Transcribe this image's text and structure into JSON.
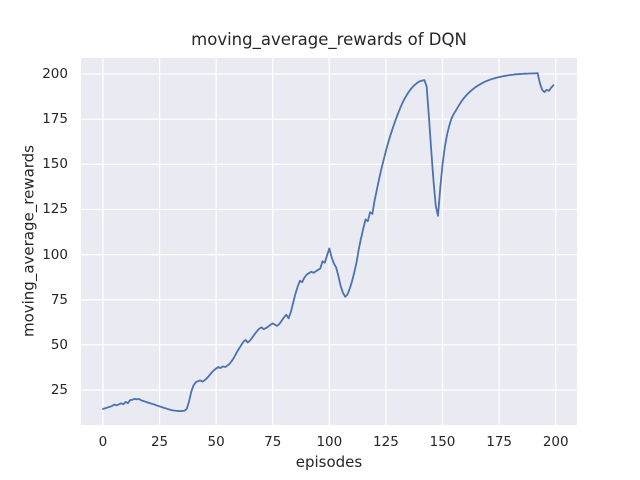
{
  "figure": {
    "title": "moving_average_rewards of DQN",
    "xlabel": "episodes",
    "ylabel": "moving_average_rewards"
  },
  "colors": {
    "line": "#4c72b0",
    "axes_background": "#eaeaf2",
    "grid": "#ffffff",
    "text": "#262626",
    "figure_background": "#ffffff"
  },
  "chart_data": {
    "type": "line",
    "title": "moving_average_rewards of DQN",
    "xlabel": "episodes",
    "ylabel": "moving_average_rewards",
    "x_ticks": [
      0,
      25,
      50,
      75,
      100,
      125,
      150,
      175,
      200
    ],
    "y_ticks": [
      25,
      50,
      75,
      100,
      125,
      150,
      175,
      200
    ],
    "xlim": [
      -9.7,
      209.4
    ],
    "ylim": [
      5.6,
      208.9
    ],
    "grid": true,
    "legend": false,
    "series": [
      {
        "name": "DQN",
        "color": "#4c72b0",
        "points": [
          [
            0,
            14.5
          ],
          [
            1,
            14.9
          ],
          [
            2,
            15.3
          ],
          [
            3,
            15.7
          ],
          [
            4,
            16.1
          ],
          [
            5,
            16.9
          ],
          [
            6,
            16.5
          ],
          [
            7,
            17.0
          ],
          [
            8,
            17.6
          ],
          [
            9,
            17.1
          ],
          [
            10,
            18.4
          ],
          [
            11,
            17.7
          ],
          [
            12,
            19.4
          ],
          [
            13,
            19.6
          ],
          [
            14,
            20.1
          ],
          [
            15,
            19.8
          ],
          [
            16,
            20.0
          ],
          [
            17,
            19.2
          ],
          [
            18,
            18.8
          ],
          [
            19,
            18.4
          ],
          [
            20,
            18.0
          ],
          [
            21,
            17.6
          ],
          [
            22,
            17.2
          ],
          [
            23,
            16.8
          ],
          [
            24,
            16.3
          ],
          [
            25,
            15.9
          ],
          [
            26,
            15.5
          ],
          [
            27,
            15.1
          ],
          [
            28,
            14.7
          ],
          [
            29,
            14.3
          ],
          [
            30,
            13.9
          ],
          [
            31,
            13.7
          ],
          [
            32,
            13.5
          ],
          [
            33,
            13.4
          ],
          [
            34,
            13.3
          ],
          [
            35,
            13.4
          ],
          [
            36,
            13.5
          ],
          [
            37,
            14.5
          ],
          [
            38,
            18.5
          ],
          [
            39,
            24.0
          ],
          [
            40,
            27.5
          ],
          [
            41,
            29.3
          ],
          [
            42,
            29.9
          ],
          [
            43,
            30.3
          ],
          [
            44,
            29.6
          ],
          [
            45,
            30.5
          ],
          [
            46,
            31.6
          ],
          [
            47,
            33.1
          ],
          [
            48,
            34.6
          ],
          [
            49,
            35.9
          ],
          [
            50,
            36.9
          ],
          [
            51,
            37.7
          ],
          [
            52,
            37.2
          ],
          [
            53,
            38.1
          ],
          [
            54,
            37.7
          ],
          [
            55,
            38.5
          ],
          [
            56,
            39.6
          ],
          [
            57,
            41.2
          ],
          [
            58,
            43.2
          ],
          [
            59,
            45.6
          ],
          [
            60,
            47.7
          ],
          [
            61,
            49.7
          ],
          [
            62,
            51.6
          ],
          [
            63,
            52.7
          ],
          [
            64,
            51.3
          ],
          [
            65,
            52.5
          ],
          [
            66,
            54.1
          ],
          [
            67,
            55.9
          ],
          [
            68,
            57.5
          ],
          [
            69,
            58.9
          ],
          [
            70,
            59.7
          ],
          [
            71,
            58.7
          ],
          [
            72,
            59.3
          ],
          [
            73,
            60.1
          ],
          [
            74,
            61.1
          ],
          [
            75,
            61.9
          ],
          [
            76,
            61.1
          ],
          [
            77,
            60.5
          ],
          [
            78,
            61.7
          ],
          [
            79,
            63.5
          ],
          [
            80,
            65.3
          ],
          [
            81,
            66.7
          ],
          [
            82,
            64.7
          ],
          [
            83,
            68.2
          ],
          [
            84,
            73.2
          ],
          [
            85,
            78.2
          ],
          [
            86,
            82.2
          ],
          [
            87,
            85.5
          ],
          [
            88,
            84.7
          ],
          [
            89,
            87.3
          ],
          [
            90,
            88.9
          ],
          [
            91,
            89.7
          ],
          [
            92,
            90.5
          ],
          [
            93,
            89.9
          ],
          [
            94,
            90.7
          ],
          [
            95,
            91.5
          ],
          [
            96,
            92.3
          ],
          [
            97,
            96.3
          ],
          [
            98,
            95.5
          ],
          [
            99,
            99.6
          ],
          [
            100,
            103.4
          ],
          [
            101,
            98.6
          ],
          [
            102,
            95.1
          ],
          [
            103,
            92.9
          ],
          [
            104,
            88.1
          ],
          [
            105,
            82.6
          ],
          [
            106,
            78.9
          ],
          [
            107,
            76.6
          ],
          [
            108,
            77.9
          ],
          [
            109,
            81.1
          ],
          [
            110,
            85.1
          ],
          [
            111,
            90.1
          ],
          [
            112,
            95.6
          ],
          [
            113,
            103.0
          ],
          [
            114,
            109.0
          ],
          [
            115,
            114.5
          ],
          [
            116,
            119.5
          ],
          [
            117,
            118.5
          ],
          [
            118,
            123.5
          ],
          [
            119,
            122.5
          ],
          [
            120,
            130.0
          ],
          [
            121,
            136.0
          ],
          [
            122,
            142.0
          ],
          [
            123,
            147.5
          ],
          [
            124,
            152.5
          ],
          [
            125,
            157.5
          ],
          [
            126,
            162.0
          ],
          [
            127,
            166.2
          ],
          [
            128,
            170.0
          ],
          [
            129,
            173.6
          ],
          [
            130,
            177.0
          ],
          [
            131,
            180.2
          ],
          [
            132,
            183.2
          ],
          [
            133,
            185.8
          ],
          [
            134,
            188.0
          ],
          [
            135,
            190.0
          ],
          [
            136,
            191.7
          ],
          [
            137,
            193.1
          ],
          [
            138,
            194.3
          ],
          [
            139,
            195.3
          ],
          [
            140,
            196.0
          ],
          [
            141,
            196.4
          ],
          [
            142,
            196.6
          ],
          [
            143,
            193.0
          ],
          [
            144,
            176.0
          ],
          [
            145,
            158.0
          ],
          [
            146,
            141.0
          ],
          [
            147,
            127.0
          ],
          [
            148,
            121.5
          ],
          [
            149,
            137.0
          ],
          [
            150,
            150.0
          ],
          [
            151,
            159.5
          ],
          [
            152,
            166.5
          ],
          [
            153,
            171.5
          ],
          [
            154,
            175.5
          ],
          [
            155,
            178.0
          ],
          [
            156,
            180.0
          ],
          [
            157,
            182.2
          ],
          [
            158,
            184.2
          ],
          [
            159,
            186.0
          ],
          [
            160,
            187.5
          ],
          [
            161,
            188.9
          ],
          [
            162,
            190.1
          ],
          [
            163,
            191.2
          ],
          [
            164,
            192.2
          ],
          [
            165,
            193.1
          ],
          [
            166,
            193.9
          ],
          [
            167,
            194.6
          ],
          [
            168,
            195.3
          ],
          [
            169,
            195.9
          ],
          [
            170,
            196.4
          ],
          [
            171,
            196.9
          ],
          [
            172,
            197.3
          ],
          [
            173,
            197.7
          ],
          [
            174,
            198.0
          ],
          [
            175,
            198.3
          ],
          [
            176,
            198.6
          ],
          [
            177,
            198.9
          ],
          [
            178,
            199.1
          ],
          [
            179,
            199.3
          ],
          [
            180,
            199.5
          ],
          [
            181,
            199.6
          ],
          [
            182,
            199.8
          ],
          [
            183,
            199.9
          ],
          [
            184,
            200.0
          ],
          [
            185,
            200.1
          ],
          [
            186,
            200.2
          ],
          [
            187,
            200.2
          ],
          [
            188,
            200.3
          ],
          [
            189,
            200.3
          ],
          [
            190,
            200.4
          ],
          [
            191,
            200.4
          ],
          [
            192,
            200.5
          ],
          [
            193,
            195.0
          ],
          [
            194,
            191.3
          ],
          [
            195,
            190.0
          ],
          [
            196,
            191.3
          ],
          [
            197,
            190.7
          ],
          [
            198,
            192.5
          ],
          [
            199,
            193.8
          ]
        ]
      }
    ]
  }
}
